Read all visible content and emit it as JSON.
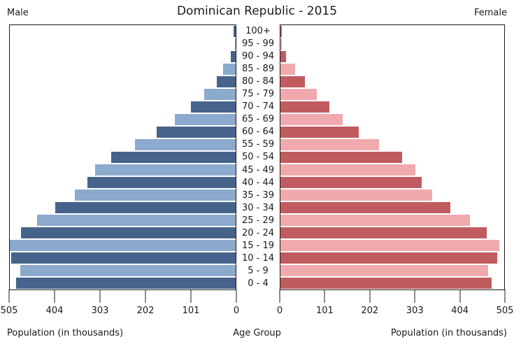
{
  "title": "Dominican Republic - 2015",
  "headers": {
    "male": "Male",
    "female": "Female"
  },
  "footer": {
    "left_axis_title": "Population (in thousands)",
    "center_axis_title": "Age Group",
    "right_axis_title": "Population (in thousands)"
  },
  "colors": {
    "male_dark": "#46638B",
    "male_light": "#8CA9CE",
    "female_dark": "#C05B60",
    "female_light": "#F0A9AD",
    "spine": "#1a1a1a",
    "background": "#ffffff"
  },
  "chart_data": {
    "type": "bar",
    "subtype": "population_pyramid",
    "title": "Dominican Republic - 2015",
    "unit": "thousands",
    "grid": false,
    "legend": "none",
    "axis_max": 505,
    "x_ticks_left": [
      505,
      404,
      303,
      202,
      101,
      0
    ],
    "x_ticks_right": [
      0,
      101,
      202,
      303,
      404,
      505
    ],
    "xlabel_left": "Population (in thousands)",
    "xlabel_right": "Population (in thousands)",
    "center_axis_label": "Age Group",
    "age_groups": [
      "100+",
      "95 - 99",
      "90 - 94",
      "85 - 89",
      "80 - 84",
      "75 - 79",
      "70 - 74",
      "65 - 69",
      "60 - 64",
      "55 - 59",
      "50 - 54",
      "45 - 49",
      "40 - 44",
      "35 - 39",
      "30 - 34",
      "25 - 29",
      "20 - 24",
      "15 - 19",
      "10 - 14",
      "5 - 9",
      "0 - 4"
    ],
    "series": [
      {
        "name": "Male",
        "side": "left",
        "values": [
          4,
          2,
          11,
          28,
          42,
          71,
          100,
          136,
          176,
          225,
          278,
          315,
          331,
          359,
          404,
          444,
          480,
          505,
          502,
          482,
          491
        ]
      },
      {
        "name": "Female",
        "side": "right",
        "values": [
          3,
          3,
          13,
          33,
          55,
          82,
          110,
          141,
          176,
          223,
          274,
          305,
          318,
          343,
          384,
          427,
          465,
          494,
          489,
          468,
          477
        ]
      }
    ]
  }
}
